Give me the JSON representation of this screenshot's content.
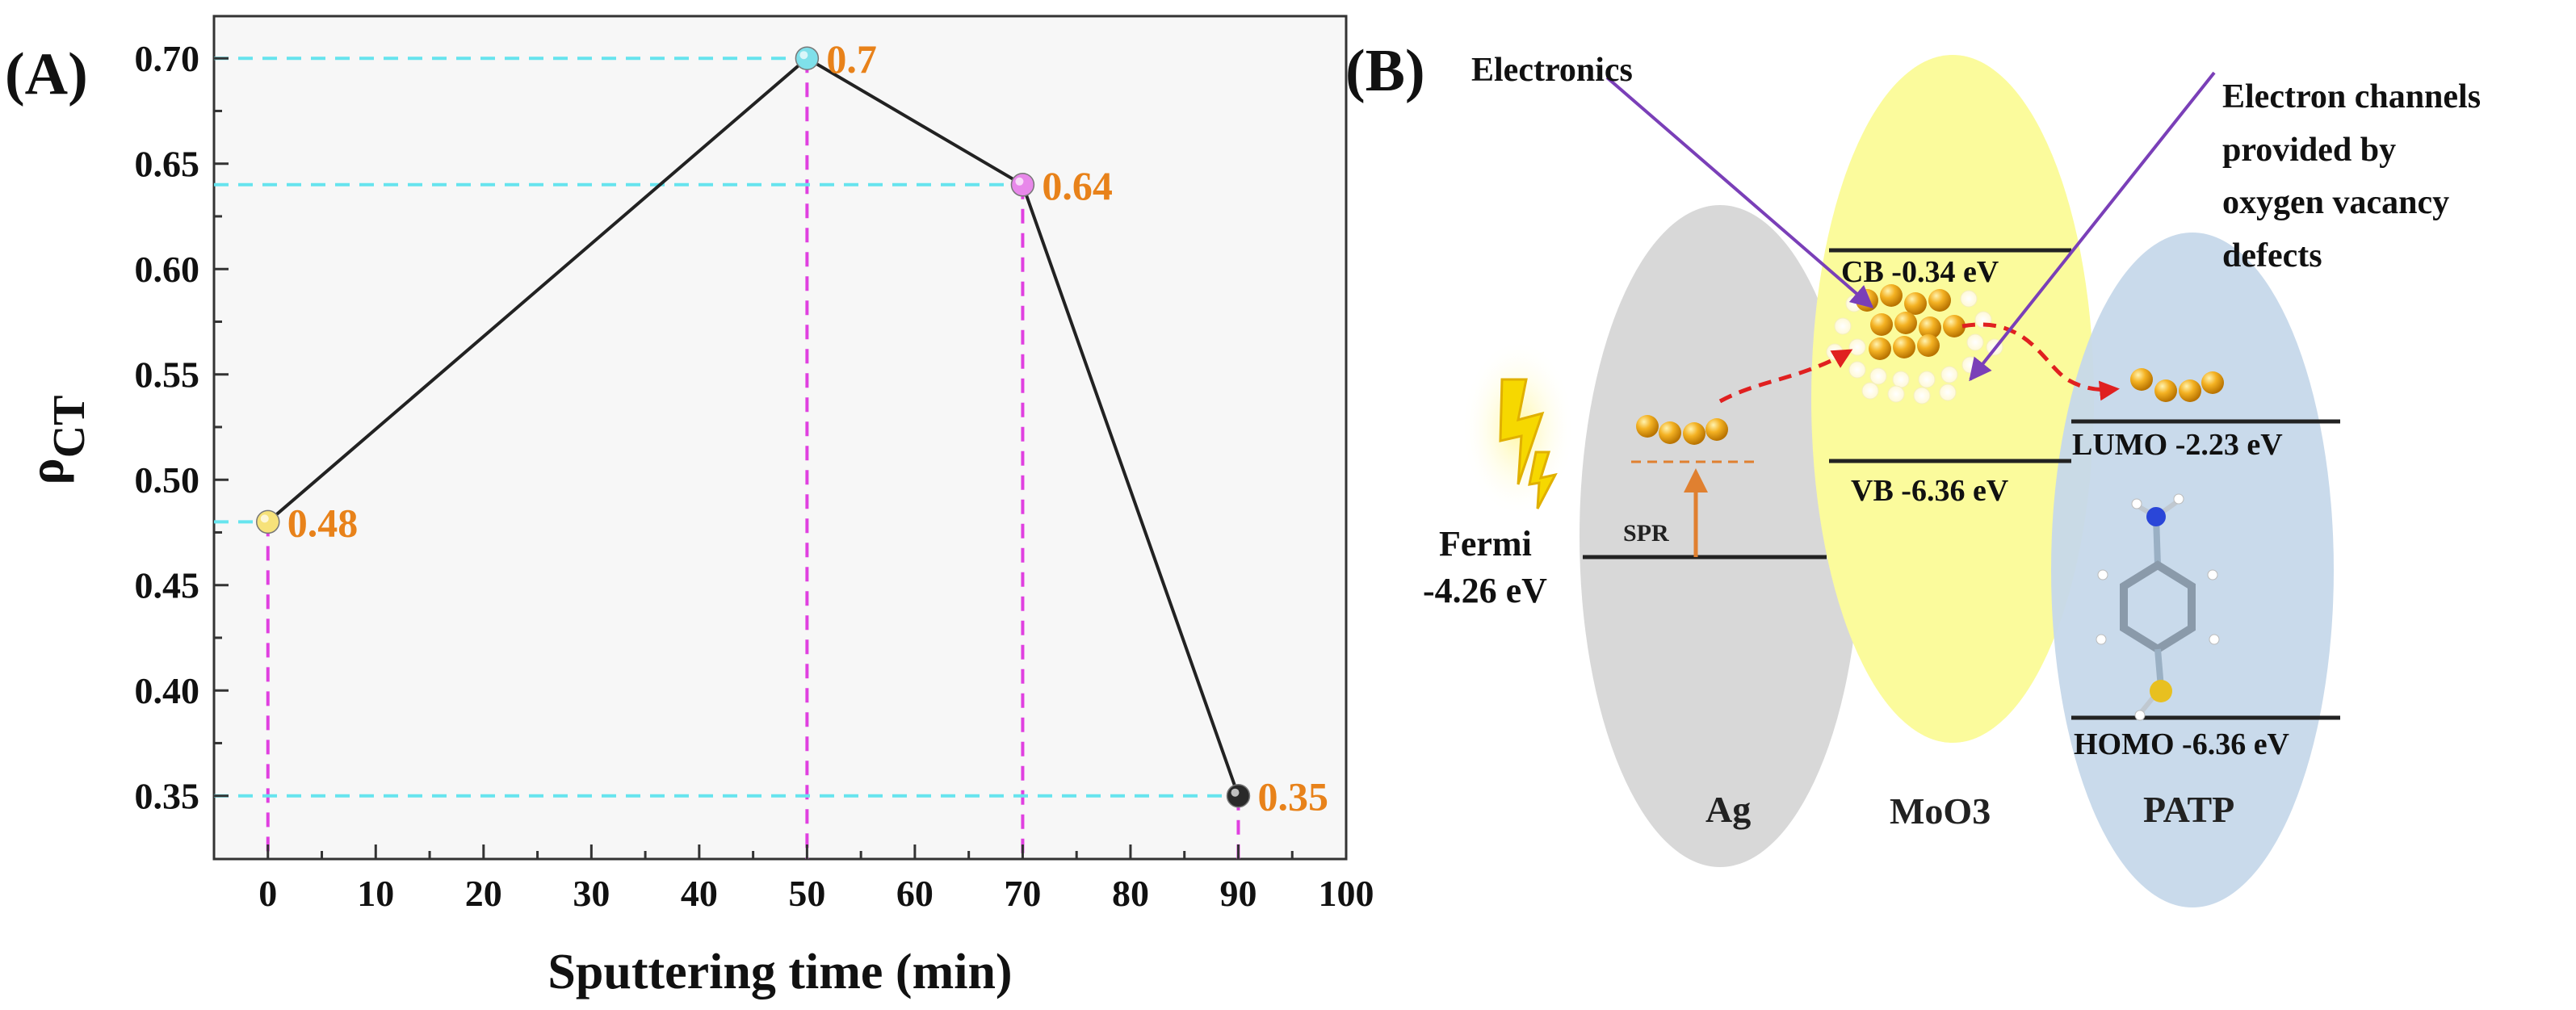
{
  "panel_a": {
    "label": "(A)"
  },
  "panel_b": {
    "label": "(B)"
  },
  "chart_data": {
    "type": "line",
    "title": "",
    "xlabel": "Sputtering time (min)",
    "ylabel": "ρ",
    "ylabel_subscript": "CT",
    "xlim": [
      -5,
      100
    ],
    "ylim": [
      0.32,
      0.72
    ],
    "xticks": [
      0,
      10,
      20,
      30,
      40,
      50,
      60,
      70,
      80,
      90,
      100
    ],
    "yticks": [
      0.35,
      0.4,
      0.45,
      0.5,
      0.55,
      0.6,
      0.65,
      0.7
    ],
    "ytick_labels": [
      "0.35",
      "0.40",
      "0.45",
      "0.50",
      "0.55",
      "0.60",
      "0.65",
      "0.70"
    ],
    "x": [
      0,
      50,
      70,
      90
    ],
    "y": [
      0.48,
      0.7,
      0.64,
      0.35
    ],
    "data_labels": [
      "0.48",
      "0.7",
      "0.64",
      "0.35"
    ],
    "marker_colors": [
      "#f7e27a",
      "#7fe0ea",
      "#e888ea",
      "#2a2a2a"
    ],
    "line_color": "#222222",
    "guide_h_color": "#66e4ee",
    "guide_v_color": "#e040e0",
    "label_color": "#e8821a"
  },
  "diagram": {
    "electronics_label": "Electronics",
    "channels_label_lines": [
      "Electron channels",
      "provided by",
      "oxygen vacancy",
      "defects"
    ],
    "cb_label": "CB -0.34 eV",
    "vb_label": "VB -6.36 eV",
    "lumo_label": "LUMO -2.23 eV",
    "homo_label": "HOMO -6.36 eV",
    "fermi_label_lines": [
      "Fermi",
      "-4.26 eV"
    ],
    "spr_label": "SPR",
    "ag_label": "Ag",
    "moo3_label": "MoO3",
    "patp_label": "PATP",
    "colors": {
      "ag": "#d8d8d8",
      "moo3": "#fbfb9c",
      "patp": "#c6d8ea",
      "particle": "#f0a820",
      "arrow_purple": "#7a3fb8",
      "arrow_red": "#e02020",
      "spr_arrow": "#e08030",
      "lightning": "#f6d800"
    }
  }
}
